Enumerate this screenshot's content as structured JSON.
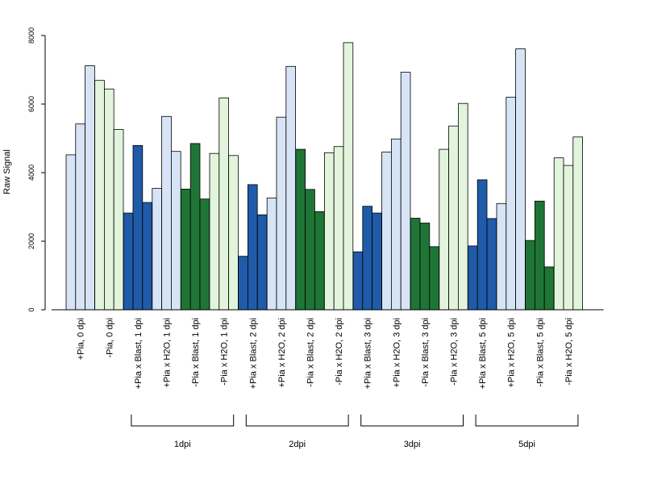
{
  "chart_data": {
    "type": "bar",
    "ylabel": "Raw Signal",
    "xlabel": "",
    "ylim": [
      0,
      8000
    ],
    "y_ticks": [
      0,
      2000,
      4000,
      6000,
      8000
    ],
    "grid": false,
    "legend": "none",
    "bars_per_category": 3,
    "categories": [
      "+Pia, 0 dpi",
      "-Pia, 0 dpi",
      "+Pia x Blast, 1 dpi",
      "+Pia x H2O, 1 dpi",
      "-Pia x Blast, 1 dpi",
      "-Pia x H2O, 1 dpi",
      "+Pia x Blast, 2 dpi",
      "+Pia x H2O, 2 dpi",
      "-Pia x Blast, 2 dpi",
      "-Pia x H2O, 2 dpi",
      "+Pia x Blast, 3 dpi",
      "+Pia x H2O, 3 dpi",
      "-Pia x Blast, 3 dpi",
      "-Pia x H2O, 3 dpi",
      "+Pia x Blast, 5 dpi",
      "+Pia x H2O, 5 dpi",
      "-Pia x Blast, 5 dpi",
      "-Pia x H2O, 5 dpi"
    ],
    "values": [
      [
        4520,
        5420,
        7120
      ],
      [
        6690,
        6440,
        5260
      ],
      [
        2820,
        4790,
        3130
      ],
      [
        3540,
        5640,
        4620
      ],
      [
        3520,
        4850,
        3230
      ],
      [
        4560,
        6180,
        4500
      ],
      [
        1560,
        3650,
        2770
      ],
      [
        3260,
        5620,
        7100
      ],
      [
        4680,
        3510,
        2860
      ],
      [
        4580,
        4760,
        7790
      ],
      [
        1690,
        3020,
        2820
      ],
      [
        4600,
        4980,
        6930
      ],
      [
        2670,
        2530,
        1840
      ],
      [
        4680,
        5360,
        6020
      ],
      [
        1860,
        3790,
        2660
      ],
      [
        3100,
        6200,
        7610
      ],
      [
        2020,
        3170,
        1250
      ],
      [
        4430,
        4210,
        5040
      ]
    ],
    "category_colors": [
      "#d6e4f5",
      "#e2f5dc",
      "#1f5ba8",
      "#d6e4f5",
      "#1f7535",
      "#e2f5dc",
      "#1f5ba8",
      "#d6e4f5",
      "#1f7535",
      "#e2f5dc",
      "#1f5ba8",
      "#d6e4f5",
      "#1f7535",
      "#e2f5dc",
      "#1f5ba8",
      "#d6e4f5",
      "#1f7535",
      "#e2f5dc"
    ],
    "groups": [
      {
        "label": "1dpi",
        "from_category": 2,
        "to_category": 5
      },
      {
        "label": "2dpi",
        "from_category": 6,
        "to_category": 9
      },
      {
        "label": "3dpi",
        "from_category": 10,
        "to_category": 13
      },
      {
        "label": "5dpi",
        "from_category": 14,
        "to_category": 17
      }
    ]
  }
}
